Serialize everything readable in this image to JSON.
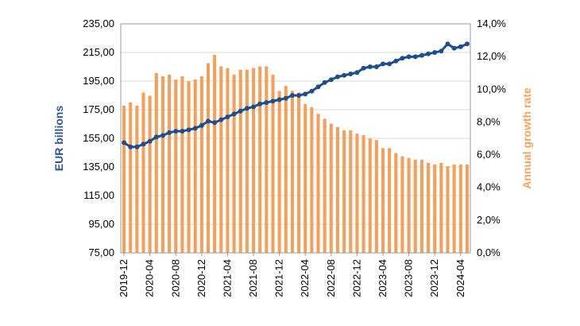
{
  "chart_data": {
    "type": "bar+line",
    "y_left": {
      "label": "EUR billions",
      "label_color": "#2f5597",
      "ticks": [
        "75,00",
        "95,00",
        "115,00",
        "135,00",
        "155,00",
        "175,00",
        "195,00",
        "215,00",
        "235,00"
      ],
      "range": [
        75,
        235
      ]
    },
    "y_right": {
      "label": "Annual growth rate",
      "label_color": "#f4a460",
      "ticks": [
        "0,0%",
        "2,0%",
        "4,0%",
        "6,0%",
        "8,0%",
        "10,0%",
        "12,0%",
        "14,0%"
      ],
      "range": [
        0,
        14
      ]
    },
    "x_tick_labels": [
      "2019-12",
      "2020-04",
      "2020-08",
      "2020-12",
      "2021-04",
      "2021-08",
      "2021-12",
      "2022-04",
      "2022-08",
      "2022-12",
      "2023-04",
      "2023-08",
      "2023-12",
      "2024-04"
    ],
    "months": [
      "2019-12",
      "2020-01",
      "2020-02",
      "2020-03",
      "2020-04",
      "2020-05",
      "2020-06",
      "2020-07",
      "2020-08",
      "2020-09",
      "2020-10",
      "2020-11",
      "2020-12",
      "2021-01",
      "2021-02",
      "2021-03",
      "2021-04",
      "2021-05",
      "2021-06",
      "2021-07",
      "2021-08",
      "2021-09",
      "2021-10",
      "2021-11",
      "2021-12",
      "2022-01",
      "2022-02",
      "2022-03",
      "2022-04",
      "2022-05",
      "2022-06",
      "2022-07",
      "2022-08",
      "2022-09",
      "2022-10",
      "2022-11",
      "2022-12",
      "2023-01",
      "2023-02",
      "2023-03",
      "2023-04",
      "2023-05",
      "2023-06",
      "2023-07",
      "2023-08",
      "2023-09",
      "2023-10",
      "2023-11",
      "2023-12",
      "2024-01",
      "2024-02",
      "2024-03",
      "2024-04",
      "2024-05"
    ],
    "series": [
      {
        "type": "bar",
        "axis": "right",
        "color": "#f5a05a",
        "values": [
          9.0,
          9.2,
          9.0,
          9.8,
          9.6,
          11.0,
          10.8,
          10.9,
          10.6,
          10.8,
          10.5,
          10.6,
          10.8,
          11.6,
          12.1,
          11.4,
          11.3,
          10.9,
          11.2,
          11.2,
          11.3,
          11.4,
          11.4,
          10.9,
          9.9,
          10.2,
          9.9,
          9.8,
          9.1,
          8.9,
          8.5,
          8.2,
          7.9,
          7.7,
          7.5,
          7.5,
          7.3,
          7.2,
          7.0,
          6.9,
          6.4,
          6.4,
          6.1,
          5.9,
          5.8,
          5.7,
          5.7,
          5.5,
          5.4,
          5.5,
          5.3,
          5.4,
          5.4,
          5.4
        ]
      },
      {
        "type": "line",
        "axis": "left",
        "color": "#1f4e8c",
        "values": [
          152,
          149,
          149,
          151,
          153,
          156,
          157,
          159,
          160,
          160,
          161,
          162,
          164,
          167,
          166,
          168,
          170,
          172,
          174,
          176,
          177,
          179,
          180,
          181,
          182,
          183,
          185,
          185,
          186,
          188,
          191,
          194,
          196,
          198,
          199,
          200,
          201,
          204,
          205,
          205,
          207,
          207,
          209,
          211,
          212,
          212,
          213,
          214,
          215,
          216,
          221,
          218,
          219,
          221
        ]
      }
    ]
  }
}
